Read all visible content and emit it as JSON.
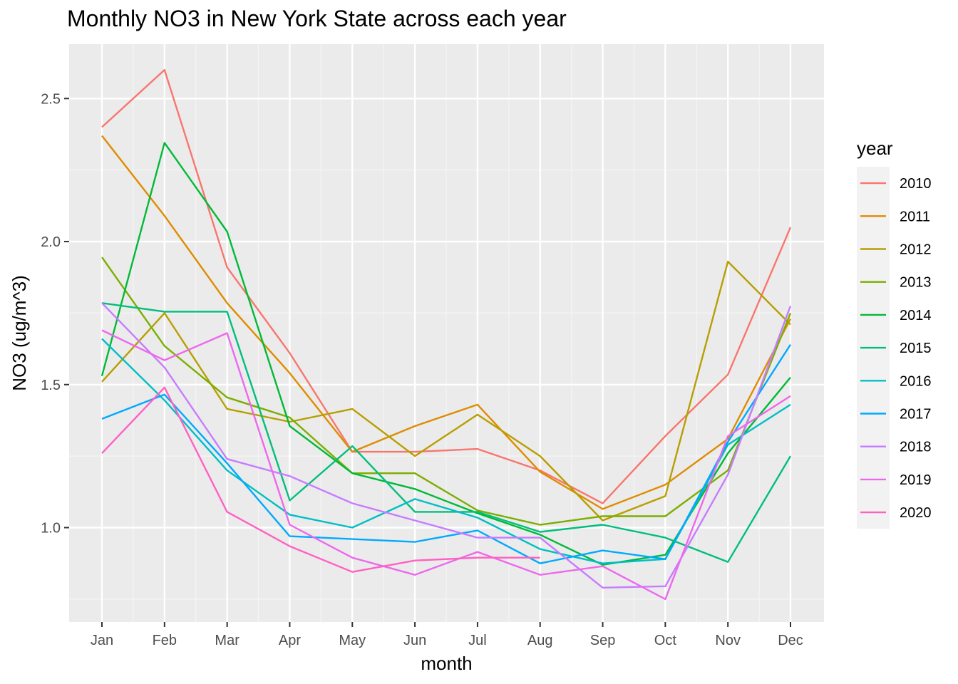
{
  "chart_data": {
    "type": "line",
    "title": "Monthly NO3 in New York State across each year",
    "xlabel": "month",
    "ylabel": "NO3 (ug/m^3)",
    "legend_title": "year",
    "legend_position": "right",
    "grid": true,
    "categories": [
      "Jan",
      "Feb",
      "Mar",
      "Apr",
      "May",
      "Jun",
      "Jul",
      "Aug",
      "Sep",
      "Oct",
      "Nov",
      "Dec"
    ],
    "ylim": [
      0.67,
      2.69
    ],
    "yticks": [
      1.0,
      1.5,
      2.0,
      2.5
    ],
    "ytick_labels": [
      "1.0",
      "1.5",
      "2.0",
      "2.5"
    ],
    "series": [
      {
        "name": "2010",
        "color": "#F8766D",
        "values": [
          2.4,
          2.6,
          1.91,
          1.61,
          1.265,
          1.265,
          1.275,
          1.2,
          1.085,
          1.32,
          1.535,
          2.05
        ]
      },
      {
        "name": "2011",
        "color": "#DE8C00",
        "values": [
          2.37,
          2.09,
          1.785,
          1.54,
          1.265,
          1.355,
          1.43,
          1.195,
          1.065,
          1.15,
          1.31,
          1.73
        ]
      },
      {
        "name": "2012",
        "color": "#B79F00",
        "values": [
          1.51,
          1.75,
          1.415,
          1.37,
          1.415,
          1.25,
          1.395,
          1.25,
          1.025,
          1.11,
          1.93,
          1.71
        ]
      },
      {
        "name": "2013",
        "color": "#7CAE00",
        "values": [
          1.945,
          1.635,
          1.455,
          1.385,
          1.19,
          1.19,
          1.06,
          1.01,
          1.04,
          1.04,
          1.2,
          1.75
        ]
      },
      {
        "name": "2014",
        "color": "#00BA38",
        "values": [
          1.53,
          2.345,
          2.035,
          1.355,
          1.19,
          1.135,
          1.05,
          0.975,
          0.87,
          0.905,
          1.26,
          1.525
        ]
      },
      {
        "name": "2015",
        "color": "#00BF7D",
        "values": [
          1.785,
          1.755,
          1.755,
          1.095,
          1.285,
          1.055,
          1.055,
          0.985,
          1.01,
          0.965,
          0.88,
          1.25
        ]
      },
      {
        "name": "2016",
        "color": "#00BFC4",
        "values": [
          1.66,
          1.445,
          1.2,
          1.045,
          1.0,
          1.1,
          1.035,
          0.925,
          0.875,
          0.89,
          1.29,
          1.43
        ]
      },
      {
        "name": "2017",
        "color": "#00A9FF",
        "values": [
          1.38,
          1.465,
          1.225,
          0.97,
          0.96,
          0.95,
          0.99,
          0.875,
          0.92,
          0.89,
          1.3,
          1.64
        ]
      },
      {
        "name": "2018",
        "color": "#C77CFF",
        "values": [
          1.785,
          1.56,
          1.24,
          1.18,
          1.085,
          1.025,
          0.965,
          0.965,
          0.79,
          0.795,
          1.185,
          1.775
        ]
      },
      {
        "name": "2019",
        "color": "#ED68ED",
        "values": [
          1.69,
          1.585,
          1.68,
          1.01,
          0.895,
          0.835,
          0.915,
          0.835,
          0.865,
          0.75,
          1.32,
          1.46
        ]
      },
      {
        "name": "2020",
        "color": "#FF61C3",
        "values": [
          1.26,
          1.49,
          1.055,
          0.935,
          0.845,
          0.885,
          0.895,
          0.895,
          null,
          null,
          null,
          null
        ]
      }
    ]
  }
}
